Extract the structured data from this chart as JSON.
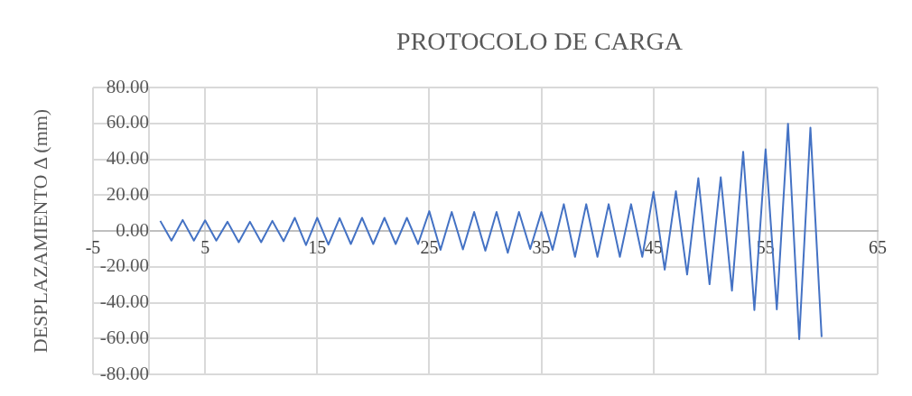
{
  "chart_data": {
    "type": "line",
    "title": "PROTOCOLO DE CARGA",
    "ylabel": "DESPLAZAMIENTO Δ (mm)",
    "x": [
      1,
      2,
      3,
      4,
      5,
      6,
      7,
      8,
      9,
      10,
      11,
      12,
      13,
      14,
      15,
      16,
      17,
      18,
      19,
      20,
      21,
      22,
      23,
      24,
      25,
      26,
      27,
      28,
      29,
      30,
      31,
      32,
      33,
      34,
      35,
      36,
      37,
      38,
      39,
      40,
      41,
      42,
      43,
      44,
      45,
      46,
      47,
      48,
      49,
      50,
      51,
      52,
      53,
      54,
      55,
      56,
      57,
      58,
      59,
      60
    ],
    "values": [
      5.6,
      -5.4,
      6.1,
      -5.4,
      5.9,
      -5.4,
      5.1,
      -6.3,
      5.1,
      -6.3,
      5.6,
      -5.7,
      7.3,
      -7.9,
      7.3,
      -7.6,
      7.1,
      -7.3,
      7.3,
      -7.3,
      7.3,
      -7.3,
      7.3,
      -7.3,
      11,
      -10.6,
      10.6,
      -10.3,
      10.6,
      -11,
      10.6,
      -12.2,
      10.6,
      -10.1,
      10.5,
      -10.6,
      14.9,
      -14.5,
      14.9,
      -14.5,
      14.9,
      -14.5,
      14.9,
      -14.5,
      21.8,
      -21.6,
      22.1,
      -24.3,
      29.4,
      -29.7,
      29.9,
      -33.3,
      44.1,
      -44.1,
      45.5,
      -43.8,
      59.8,
      -60.4,
      57.6,
      -59.2
    ],
    "color": "#4472c4",
    "xlim": [
      -5,
      65
    ],
    "xticks": [
      -5,
      5,
      15,
      25,
      35,
      45,
      55,
      65
    ],
    "ylim": [
      -80,
      80
    ],
    "yticks": [
      {
        "value": -80,
        "label": "-80.00"
      },
      {
        "value": -60,
        "label": "-60.00"
      },
      {
        "value": -40,
        "label": "-40.00"
      },
      {
        "value": -20,
        "label": "-20.00"
      },
      {
        "value": 0,
        "label": "0.00"
      },
      {
        "value": 20,
        "label": "20.00"
      },
      {
        "value": 40,
        "label": "40.00"
      },
      {
        "value": 60,
        "label": "60.00"
      },
      {
        "value": 80,
        "label": "80.00"
      }
    ],
    "grid": true,
    "legend": false
  }
}
